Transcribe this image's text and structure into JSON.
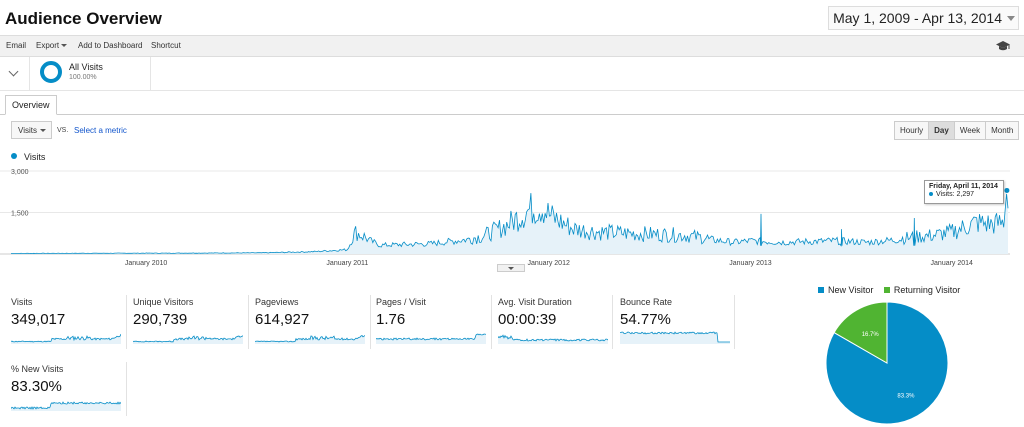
{
  "header": {
    "title": "Audience Overview",
    "date_range": "May 1, 2009 - Apr 13, 2014"
  },
  "toolbar": {
    "email": "Email",
    "export": "Export",
    "add_to_dashboard": "Add to Dashboard",
    "shortcut": "Shortcut"
  },
  "segment": {
    "name": "All Visits",
    "percent": "100.00%"
  },
  "tabs": {
    "overview": "Overview"
  },
  "controls": {
    "metric": "Visits",
    "vs": "VS.",
    "select_metric": "Select a metric",
    "granularity": [
      "Hourly",
      "Day",
      "Week",
      "Month"
    ],
    "active_granularity": "Day"
  },
  "chart_legend": {
    "series": "Visits"
  },
  "tooltip": {
    "date": "Friday, April 11, 2014",
    "value": "Visits: 2,297"
  },
  "colors": {
    "accent": "#058dc7",
    "new_visitor": "#058dc7",
    "returning_visitor": "#50b432"
  },
  "metrics": [
    {
      "label": "Visits",
      "value": "349,017"
    },
    {
      "label": "Unique Visitors",
      "value": "290,739"
    },
    {
      "label": "Pageviews",
      "value": "614,927"
    },
    {
      "label": "Pages / Visit",
      "value": "1.76"
    },
    {
      "label": "Avg. Visit Duration",
      "value": "00:00:39"
    },
    {
      "label": "Bounce Rate",
      "value": "54.77%"
    },
    {
      "label": "% New Visits",
      "value": "83.30%"
    }
  ],
  "pie": {
    "legend": [
      "New Visitor",
      "Returning Visitor"
    ],
    "labels": [
      "83.3%",
      "16.7%"
    ]
  },
  "chart_data": [
    {
      "type": "area",
      "series": [
        {
          "name": "Visits",
          "x": [
            "2009-05-01",
            "2009-10-01",
            "2010-03-01",
            "2010-08-01",
            "2010-11-01",
            "2011-01-01",
            "2011-01-15",
            "2011-03-01",
            "2011-06-01",
            "2011-09-01",
            "2011-10-15",
            "2011-12-01",
            "2011-12-20",
            "2012-01-05",
            "2012-02-15",
            "2012-04-01",
            "2012-06-01",
            "2012-09-01",
            "2012-12-01",
            "2013-01-01",
            "2013-03-01",
            "2013-06-01",
            "2013-08-01",
            "2013-10-01",
            "2013-12-01",
            "2014-01-01",
            "2014-02-15",
            "2014-03-15",
            "2014-04-05",
            "2014-04-11",
            "2014-04-13"
          ],
          "y": [
            20,
            25,
            30,
            40,
            80,
            150,
            700,
            300,
            350,
            550,
            900,
            1450,
            1500,
            1200,
            800,
            700,
            650,
            600,
            400,
            450,
            400,
            450,
            400,
            500,
            600,
            700,
            1000,
            950,
            1000,
            2297,
            1650
          ]
        }
      ],
      "ylim": [
        0,
        3000
      ],
      "yticks": [
        "1,500",
        "3,000"
      ],
      "xticks": [
        "January 2010",
        "January 2011",
        "January 2012",
        "January 2013",
        "January 2014"
      ],
      "grid": true
    },
    {
      "type": "pie",
      "categories": [
        "New Visitor",
        "Returning Visitor"
      ],
      "values": [
        83.3,
        16.7
      ],
      "legend": "top"
    }
  ]
}
